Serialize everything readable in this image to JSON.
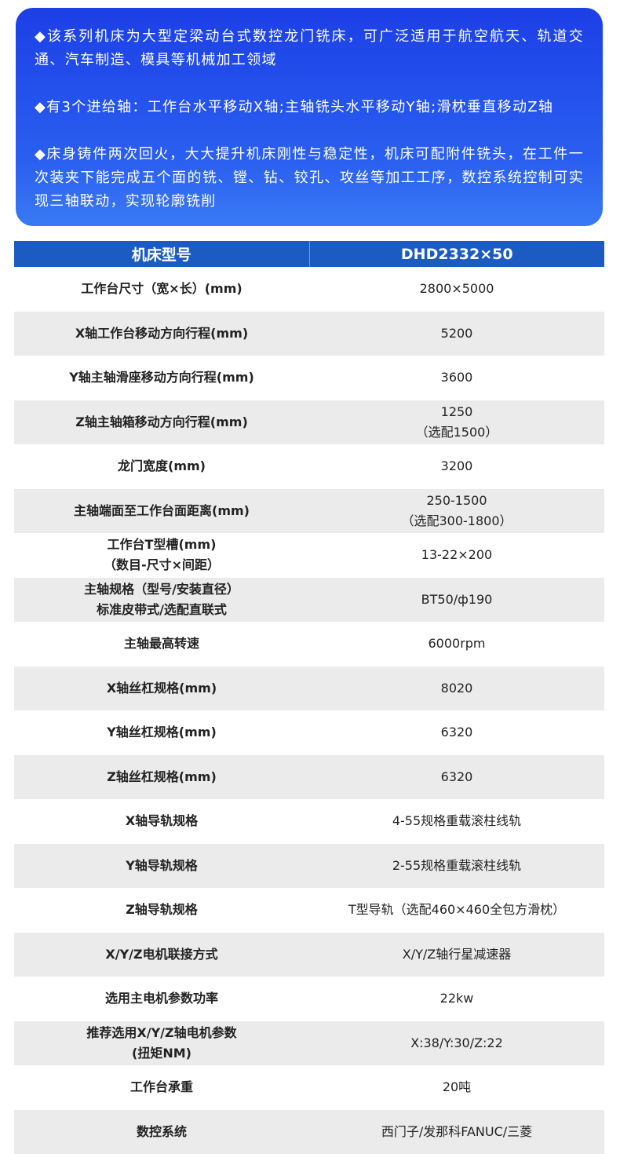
{
  "intro": {
    "paragraphs": [
      "◆该系列机床为大型定梁动台式数控龙门铣床，可广泛适用于航空航天、轨道交通、汽车制造、模具等机械加工领域",
      "◆有3个进给轴：工作台水平移动X轴;主轴铣头水平移动Y轴;滑枕垂直移动Z轴",
      "◆床身铸件两次回火，大大提升机床刚性与稳定性，机床可配附件铣头，在工件一次装夹下能完成五个面的铣、镗、钻、铰孔、攻丝等加工工序，数控系统控制可实现三轴联动，实现轮廓铣削"
    ]
  },
  "table": {
    "header": [
      "机床型号",
      "DHD2332×50"
    ],
    "rows": [
      [
        [
          "工作台尺寸（宽×长）(mm)"
        ],
        [
          "2800×5000"
        ]
      ],
      [
        [
          "X轴工作台移动方向行程(mm)"
        ],
        [
          "5200"
        ]
      ],
      [
        [
          "Y轴主轴滑座移动方向行程(mm)"
        ],
        [
          "3600"
        ]
      ],
      [
        [
          "Z轴主轴箱移动方向行程(mm)"
        ],
        [
          "1250",
          "（选配1500）"
        ]
      ],
      [
        [
          "龙门宽度(mm)"
        ],
        [
          "3200"
        ]
      ],
      [
        [
          "主轴端面至工作台面距离(mm)"
        ],
        [
          "250-1500",
          "（选配300-1800）"
        ]
      ],
      [
        [
          "工作台T型槽(mm)",
          "（数目-尺寸×间距）"
        ],
        [
          "13-22×200"
        ]
      ],
      [
        [
          "主轴规格（型号/安装直径）",
          "标准皮带式/选配直联式"
        ],
        [
          "BT50/ф190"
        ]
      ],
      [
        [
          "主轴最高转速"
        ],
        [
          "6000rpm"
        ]
      ],
      [
        [
          "X轴丝杠规格(mm)"
        ],
        [
          "8020"
        ]
      ],
      [
        [
          "Y轴丝杠规格(mm)"
        ],
        [
          "6320"
        ]
      ],
      [
        [
          "Z轴丝杠规格(mm)"
        ],
        [
          "6320"
        ]
      ],
      [
        [
          "X轴导轨规格"
        ],
        [
          "4-55规格重载滚柱线轨"
        ]
      ],
      [
        [
          "Y轴导轨规格"
        ],
        [
          "2-55规格重载滚柱线轨"
        ]
      ],
      [
        [
          "Z轴导轨规格"
        ],
        [
          "T型导轨（选配460×460全包方滑枕）"
        ]
      ],
      [
        [
          "X/Y/Z电机联接方式"
        ],
        [
          "X/Y/Z轴行星减速器"
        ]
      ],
      [
        [
          "选用主电机参数功率"
        ],
        [
          "22kw"
        ]
      ],
      [
        [
          "推荐选用X/Y/Z轴电机参数",
          "(扭矩NM)"
        ],
        [
          "X:38/Y:30/Z:22"
        ]
      ],
      [
        [
          "工作台承重"
        ],
        [
          "20吨"
        ]
      ],
      [
        [
          "数控系统"
        ],
        [
          "西门子/发那科FANUC/三菱"
        ]
      ]
    ]
  }
}
